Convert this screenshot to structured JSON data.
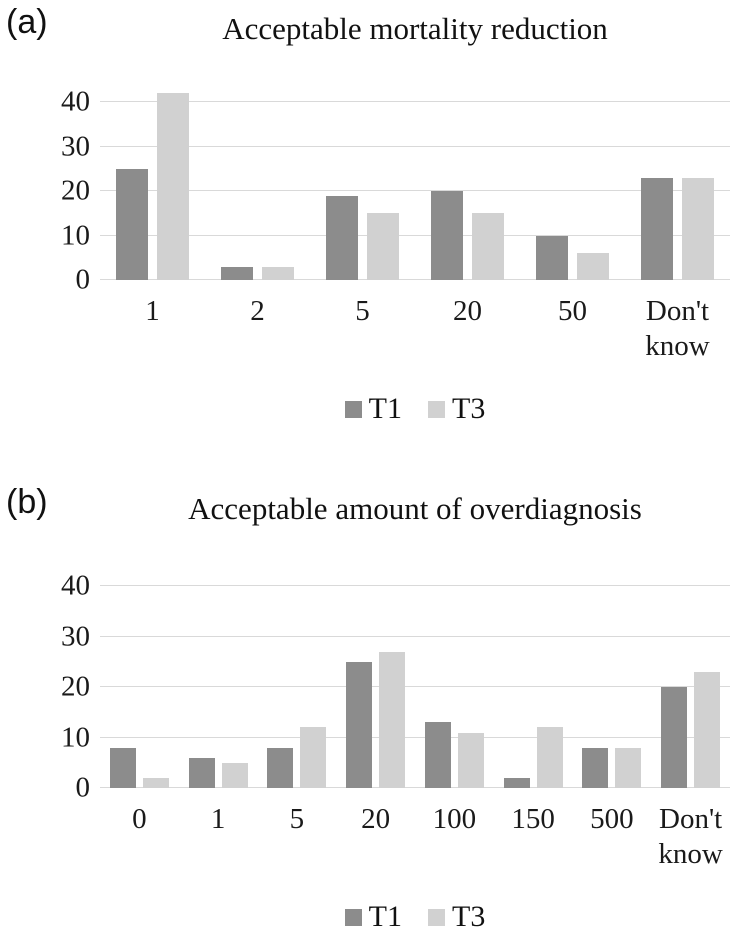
{
  "figure": {
    "panels": [
      "(a)",
      "(b)"
    ]
  },
  "colors": {
    "series_t1": "#8c8c8c",
    "series_t3": "#d1d1d1",
    "gridline": "#d9d9d9",
    "text": "#111111"
  },
  "chart_data": [
    {
      "type": "bar",
      "panel_label": "(a)",
      "title": "Acceptable mortality reduction",
      "categories": [
        "1",
        "2",
        "5",
        "20",
        "50",
        "Don't know"
      ],
      "series": [
        {
          "name": "T1",
          "color": "#8c8c8c",
          "values": [
            25,
            3,
            19,
            20,
            10,
            23
          ]
        },
        {
          "name": "T3",
          "color": "#d1d1d1",
          "values": [
            42,
            3,
            15,
            15,
            6,
            23
          ]
        }
      ],
      "xlabel": "",
      "ylabel": "",
      "yticks": [
        0,
        10,
        20,
        30,
        40
      ],
      "ylim": [
        0,
        45
      ],
      "grid": true,
      "legend_position": "bottom"
    },
    {
      "type": "bar",
      "panel_label": "(b)",
      "title": "Acceptable amount of overdiagnosis",
      "categories": [
        "0",
        "1",
        "5",
        "20",
        "100",
        "150",
        "500",
        "Don't know"
      ],
      "series": [
        {
          "name": "T1",
          "color": "#8c8c8c",
          "values": [
            8,
            6,
            8,
            25,
            13,
            2,
            8,
            20
          ]
        },
        {
          "name": "T3",
          "color": "#d1d1d1",
          "values": [
            2,
            5,
            12,
            27,
            11,
            12,
            8,
            23
          ]
        }
      ],
      "xlabel": "",
      "ylabel": "",
      "yticks": [
        0,
        10,
        20,
        30,
        40
      ],
      "ylim": [
        0,
        44
      ],
      "grid": true,
      "legend_position": "bottom"
    }
  ]
}
